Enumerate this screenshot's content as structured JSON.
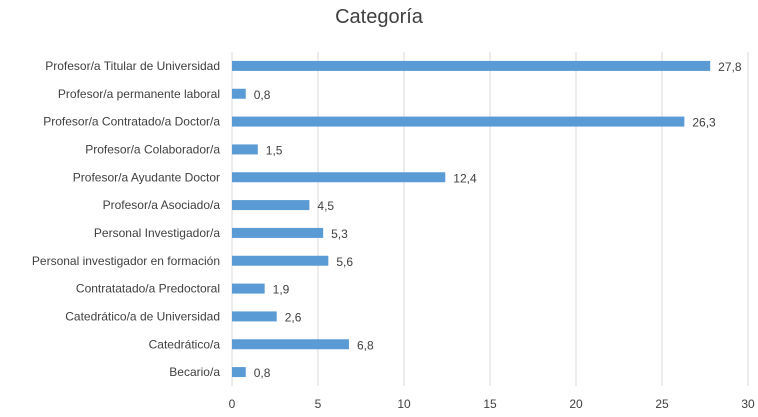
{
  "chart_data": {
    "type": "bar",
    "orientation": "horizontal",
    "title": "Categoría",
    "categories": [
      "Profesor/a Titular de Universidad",
      "Profesor/a permanente laboral",
      "Profesor/a Contratado/a Doctor/a",
      "Profesor/a Colaborador/a",
      "Profesor/a Ayudante Doctor",
      "Profesor/a Asociado/a",
      "Personal Investigador/a",
      "Personal investigador en formación",
      "Contratatado/a Predoctoral",
      "Catedrático/a de Universidad",
      "Catedrático/a",
      "Becario/a"
    ],
    "values": [
      27.8,
      0.8,
      26.3,
      1.5,
      12.4,
      4.5,
      5.3,
      5.6,
      1.9,
      2.6,
      6.8,
      0.8
    ],
    "data_labels": [
      "27,8",
      "0,8",
      "26,3",
      "1,5",
      "12,4",
      "4,5",
      "5,3",
      "5,6",
      "1,9",
      "2,6",
      "6,8",
      "0,8"
    ],
    "xlim": [
      0,
      30
    ],
    "xticks": [
      0,
      5,
      10,
      15,
      20,
      25,
      30
    ],
    "grid": true,
    "bar_color": "#5b9bd5",
    "grid_color": "#d9d9d9"
  }
}
